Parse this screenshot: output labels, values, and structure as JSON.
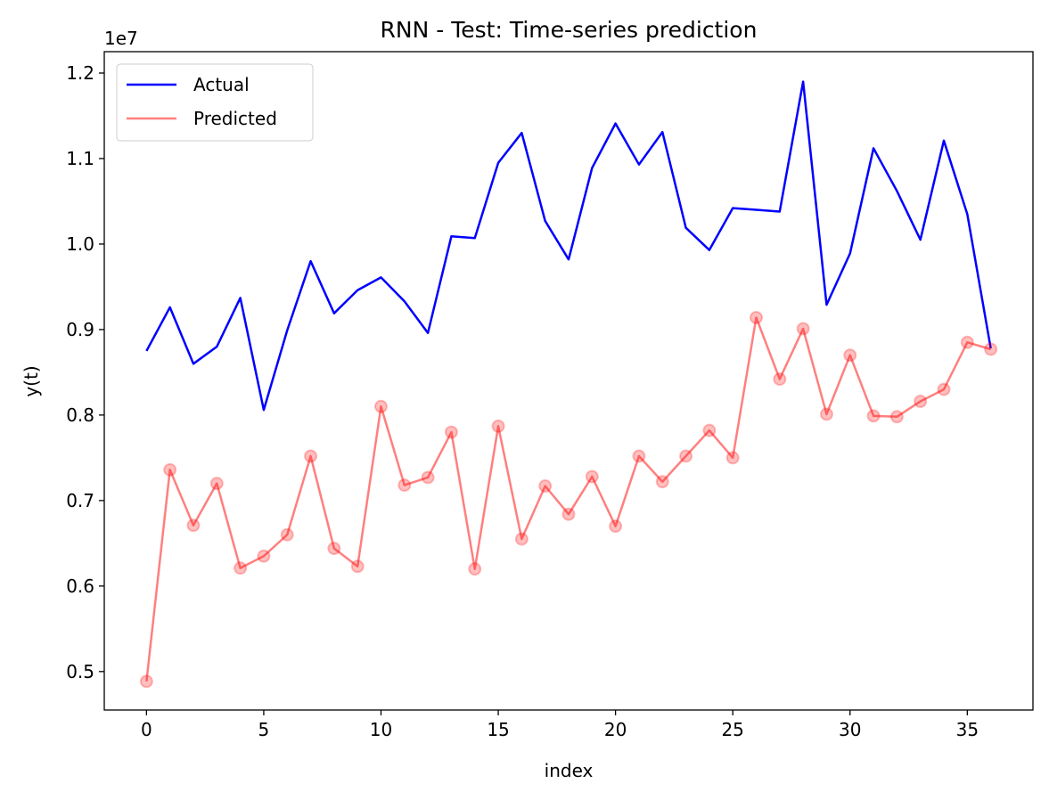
{
  "chart_data": {
    "type": "line",
    "title": "RNN - Test: Time-series prediction",
    "xlabel": "index",
    "ylabel": "y(t)",
    "y_offset_label": "1e7",
    "xlim": [
      -1.8,
      37.8
    ],
    "ylim": [
      0.455,
      1.225
    ],
    "x_ticks": [
      0,
      5,
      10,
      15,
      20,
      25,
      30,
      35
    ],
    "y_ticks": [
      0.5,
      0.6,
      0.7,
      0.8,
      0.9,
      1.0,
      1.1,
      1.2
    ],
    "y_tick_labels": [
      "0.5",
      "0.6",
      "0.7",
      "0.8",
      "0.9",
      "1.0",
      "1.1",
      "1.2"
    ],
    "legend_position": "top-left",
    "series": [
      {
        "name": "Actual",
        "color": "#0000ff",
        "markers": false,
        "values": [
          0.875,
          0.926,
          0.86,
          0.88,
          0.937,
          0.806,
          0.899,
          0.98,
          0.919,
          0.946,
          0.961,
          0.933,
          0.896,
          1.009,
          1.007,
          1.095,
          1.13,
          1.027,
          0.982,
          1.089,
          1.141,
          1.093,
          1.131,
          1.019,
          0.993,
          1.042,
          1.04,
          1.038,
          1.19,
          0.929,
          0.989,
          1.112,
          1.062,
          1.005,
          1.121,
          1.035,
          0.878
        ]
      },
      {
        "name": "Predicted",
        "color": "#ff0000",
        "markers": true,
        "values": [
          0.4885,
          0.736,
          0.671,
          0.72,
          0.621,
          0.635,
          0.66,
          0.752,
          0.644,
          0.623,
          0.81,
          0.718,
          0.727,
          0.78,
          0.62,
          0.787,
          0.655,
          0.717,
          0.684,
          0.728,
          0.67,
          0.752,
          0.722,
          0.752,
          0.782,
          0.75,
          0.914,
          0.842,
          0.901,
          0.801,
          0.87,
          0.799,
          0.798,
          0.816,
          0.83,
          0.885,
          0.877
        ]
      }
    ]
  }
}
